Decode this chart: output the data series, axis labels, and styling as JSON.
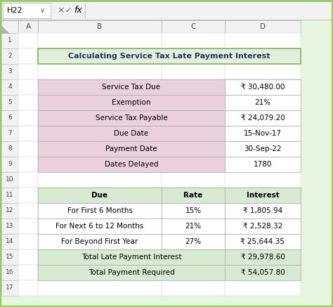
{
  "title": "Calculating Service Tax Late Payment Interest",
  "title_bg": "#e2efda",
  "title_color": "#1f3864",
  "outer_border_color": "#92d050",
  "top_table": {
    "rows": [
      [
        "Service Tax Due",
        "₹ 30,480.00"
      ],
      [
        "Exemption",
        "21%"
      ],
      [
        "Service Tax Payable",
        "₹ 24,079.20"
      ],
      [
        "Due Date",
        "15-Nov-17"
      ],
      [
        "Payment Date",
        "30-Sep-22"
      ],
      [
        "Dates Delayed",
        "1780"
      ]
    ],
    "left_bg": "#ead1dc",
    "right_bg": "#ffffff",
    "border_color": "#b0b0b0"
  },
  "bottom_table": {
    "header": [
      "Due",
      "Rate",
      "Interest"
    ],
    "header_bg": "#d9ead3",
    "rows": [
      [
        "For First 6 Months",
        "15%",
        "₹ 1,805.94"
      ],
      [
        "For Next 6 to 12 Months",
        "21%",
        "₹ 2,528.32"
      ],
      [
        "For Beyond First Year",
        "27%",
        "₹ 25,644.35"
      ],
      [
        "Total Late Payment Interest",
        "",
        "₹ 29,978.60"
      ],
      [
        "Total Payment Required",
        "",
        "₹ 54,057.80"
      ]
    ],
    "row_bg": "#ffffff",
    "total_bg": "#d9ead3",
    "border_color": "#b0b0b0"
  },
  "cell_ref": "H22",
  "col_headers": [
    "A",
    "B",
    "C",
    "D"
  ],
  "toolbar_bg": "#f2f2f2",
  "header_row_bg": "#f2f2f2",
  "row_num_bg": "#f2f2f2",
  "grid_bg": "#ffffff",
  "grid_line": "#d0d0d0",
  "outer_bg": "#e8f5e0"
}
